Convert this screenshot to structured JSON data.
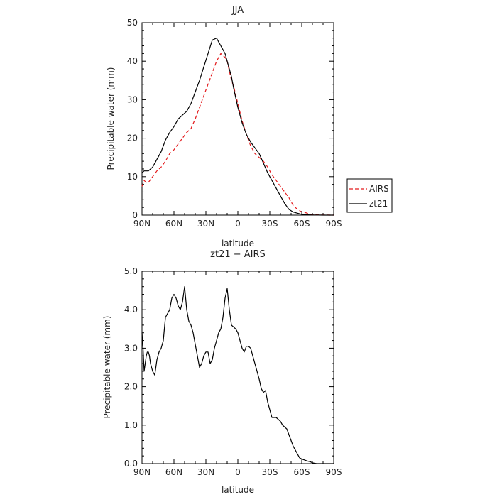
{
  "chart_data": [
    {
      "type": "line",
      "title": "JJA",
      "xlabel": "latitude",
      "ylabel": "Precipitable water (mm)",
      "xlim": [
        90,
        -90
      ],
      "ylim": [
        0,
        50
      ],
      "x_tick_labels": [
        "90N",
        "60N",
        "30N",
        "0",
        "30S",
        "60S",
        "90S"
      ],
      "y_tick_labels": [
        "0",
        "10",
        "20",
        "30",
        "40",
        "50"
      ],
      "grid": false,
      "legend_position": "right",
      "series": [
        {
          "name": "AIRS",
          "color": "#e31a1c",
          "dash": "dashed",
          "x": [
            90,
            88,
            86,
            84,
            80,
            76,
            72,
            68,
            64,
            60,
            56,
            52,
            48,
            44,
            40,
            36,
            32,
            28,
            24,
            20,
            16,
            12,
            10,
            8,
            6,
            4,
            0,
            -4,
            -8,
            -12,
            -16,
            -20,
            -24,
            -28,
            -32,
            -36,
            -40,
            -44,
            -48,
            -52,
            -56,
            -60,
            -64,
            -68,
            -72,
            -76,
            -80,
            -84,
            -88,
            -90
          ],
          "y": [
            7.5,
            9,
            8.5,
            8.5,
            10,
            11.5,
            12.5,
            14,
            16,
            17,
            18.5,
            20,
            21.5,
            22.5,
            25,
            28,
            31,
            34,
            37,
            40,
            42,
            41,
            40,
            37.5,
            35,
            33.5,
            29,
            24.5,
            21,
            18,
            16,
            15,
            14,
            12.5,
            10.5,
            9,
            7.5,
            6,
            4.5,
            2.5,
            1.5,
            0.8,
            0.6,
            0.2,
            0.1,
            0.05,
            0.02,
            0.01,
            0.0,
            0.0
          ]
        },
        {
          "name": "zt21",
          "color": "#000000",
          "dash": "solid",
          "x": [
            90,
            88,
            86,
            84,
            80,
            76,
            72,
            68,
            64,
            60,
            56,
            52,
            48,
            44,
            40,
            36,
            32,
            28,
            24,
            20,
            16,
            12,
            10,
            8,
            6,
            4,
            0,
            -4,
            -8,
            -12,
            -16,
            -20,
            -24,
            -28,
            -32,
            -36,
            -40,
            -44,
            -48,
            -52,
            -56,
            -60,
            -64,
            -68,
            -72,
            -76,
            -80,
            -84,
            -88,
            -90
          ],
          "y": [
            11,
            11.5,
            11.5,
            11.5,
            12.5,
            14.5,
            16.5,
            19.5,
            21.5,
            23,
            25,
            26,
            27,
            29,
            32,
            35,
            38.5,
            42,
            45.5,
            46,
            44,
            42,
            40,
            38,
            36,
            33,
            28,
            24,
            21,
            19,
            17.5,
            16,
            13.5,
            11,
            9,
            7,
            5,
            3,
            1.5,
            0.8,
            0.5,
            0.2,
            0.1,
            0.05,
            0.02,
            0.01,
            0.0,
            0.0,
            0.0,
            0.0
          ]
        }
      ]
    },
    {
      "type": "line",
      "title": "zt21 − AIRS",
      "xlabel": "latitude",
      "ylabel": "Precipitable water (mm)",
      "xlim": [
        90,
        -90
      ],
      "ylim": [
        0,
        5
      ],
      "x_tick_labels": [
        "90N",
        "60N",
        "30N",
        "0",
        "30S",
        "60S",
        "90S"
      ],
      "y_tick_labels": [
        "0.0",
        "1.0",
        "2.0",
        "3.0",
        "4.0",
        "5.0"
      ],
      "grid": false,
      "series": [
        {
          "color": "#000000",
          "x": [
            90,
            89,
            88,
            87,
            86,
            85,
            84,
            83,
            82,
            80,
            78,
            76,
            74,
            72,
            70,
            68,
            66,
            64,
            62,
            60,
            58,
            56,
            54,
            52,
            50,
            48,
            46,
            44,
            42,
            40,
            38,
            36,
            34,
            32,
            30,
            28,
            26,
            24,
            22,
            20,
            18,
            16,
            14,
            12,
            10,
            8,
            6,
            4,
            2,
            0,
            -2,
            -4,
            -6,
            -8,
            -10,
            -12,
            -14,
            -16,
            -18,
            -20,
            -22,
            -24,
            -26,
            -28,
            -30,
            -32,
            -34,
            -36,
            -38,
            -40,
            -42,
            -44,
            -46,
            -48,
            -50,
            -52,
            -54,
            -56,
            -58,
            -60,
            -62,
            -64,
            -66,
            -68,
            -70,
            -72,
            -74,
            -76,
            -78,
            -80,
            -82,
            -84,
            -86,
            -88,
            -90
          ],
          "y": [
            3.4,
            3.0,
            2.4,
            2.6,
            2.8,
            2.9,
            2.9,
            2.8,
            2.6,
            2.4,
            2.3,
            2.7,
            2.9,
            3.0,
            3.2,
            3.8,
            3.9,
            4.0,
            4.3,
            4.4,
            4.3,
            4.1,
            4.0,
            4.2,
            4.6,
            4.0,
            3.7,
            3.6,
            3.4,
            3.1,
            2.8,
            2.5,
            2.6,
            2.8,
            2.9,
            2.9,
            2.6,
            2.7,
            3.0,
            3.2,
            3.4,
            3.5,
            3.8,
            4.3,
            4.55,
            4.0,
            3.6,
            3.55,
            3.5,
            3.4,
            3.2,
            3.0,
            2.9,
            3.05,
            3.05,
            3.0,
            2.8,
            2.6,
            2.4,
            2.2,
            1.95,
            1.85,
            1.9,
            1.6,
            1.4,
            1.2,
            1.2,
            1.2,
            1.15,
            1.1,
            1.0,
            0.95,
            0.9,
            0.75,
            0.6,
            0.45,
            0.35,
            0.25,
            0.15,
            0.12,
            0.1,
            0.08,
            0.06,
            0.05,
            0.02,
            0.01,
            0.0,
            0.0,
            0.0,
            0.0,
            0.0,
            0.0,
            0.0,
            0.0,
            0.0
          ]
        }
      ]
    }
  ]
}
